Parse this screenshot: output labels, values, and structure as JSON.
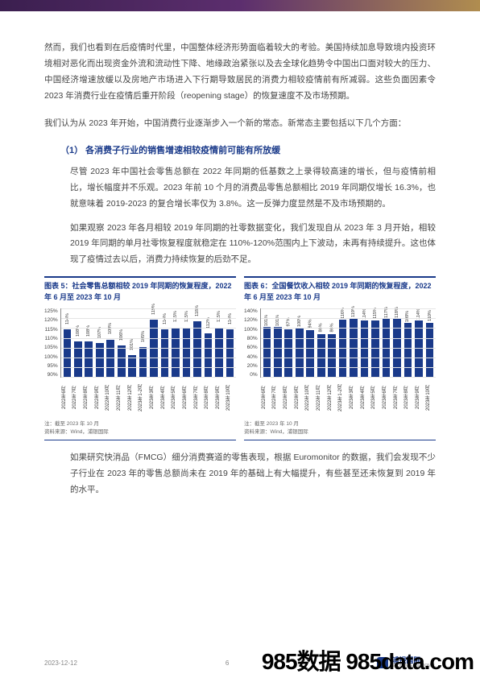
{
  "para1": "然而，我们也看到在后疫情时代里，中国整体经济形势面临着较大的考验。美国持续加息导致境内投资环境相对恶化而出现资金外流和流动性下降、地缘政治紧张以及去全球化趋势令中国出口面对较大的压力、中国经济增速放缓以及房地产市场进入下行期导致居民的消费力相较疫情前有所减弱。这些负面因素令 2023 年消费行业在疫情后重开阶段（reopening stage）的恢复速度不及市场预期。",
  "para2": "我们认为从 2023 年开始，中国消费行业逐渐步入一个新的常态。新常态主要包括以下几个方面：",
  "section_head": "（1） 各消费子行业的销售增速相较疫情前可能有所放缓",
  "para3": "尽管 2023 年中国社会零售总额在 2022 年同期的低基数之上录得较高速的增长，但与疫情前相比，增长幅度并不乐观。2023 年前 10 个月的消费品零售总额相比 2019 年同期仅增长 16.3%，也就意味着 2019-2023 的复合增长率仅为 3.8%。这一反弹力度显然是不及市场预期的。",
  "para4": "如果观察 2023 年各月相较 2019 年同期的社零数据变化，我们发现自从 2023 年 3 月开始，相较 2019 年同期的单月社零恢复程度就稳定在 110%-120%范围内上下波动，未再有持续提升。这也体现了疫情过去以后，消费力持续恢复的后劲不足。",
  "para5": "如果研究快消品（FMCG）细分消费赛道的零售表现，根据 Euromonitor 的数据，我们会发现不少子行业在 2023 年的零售总额尚未在 2019 年的基础上有大幅提升，有些甚至还未恢复到 2019 年的水平。",
  "chart5": {
    "title": "图表 5：社会零售总额相较 2019 年同期的恢复程度，2022 年 6 月至 2023 年 10 月",
    "bar_color": "#1a3a8a",
    "y_min": 90,
    "y_max": 125,
    "y_step": 5,
    "y_ticks": [
      "125%",
      "120%",
      "115%",
      "110%",
      "105%",
      "100%",
      "95%",
      "90%"
    ],
    "categories": [
      "2022年6月",
      "2022年7月",
      "2022年8月",
      "2022年9月",
      "2022年10月",
      "2022年11月",
      "2022年12月",
      "2023年1-2月",
      "2023年3月",
      "2023年4月",
      "2023年5月",
      "2023年6月",
      "2023年7月",
      "2023年8月",
      "2023年9月",
      "2023年10月"
    ],
    "values": [
      114,
      108,
      108,
      107,
      109,
      106,
      101,
      105,
      119,
      114,
      115,
      115,
      118,
      112,
      115,
      114
    ],
    "note1": "注：截至 2023 年 10 月",
    "note2": "资料来源：Wind，浦银国际"
  },
  "chart6": {
    "title": "图表 6：全国餐饮收入相较 2019 年同期的恢复程度，2022 年 6 月至 2023 年 10 月",
    "bar_color": "#1a3a8a",
    "y_min": 0,
    "y_max": 140,
    "y_step": 20,
    "y_ticks": [
      "140%",
      "120%",
      "100%",
      "80%",
      "60%",
      "40%",
      "20%",
      "0%"
    ],
    "categories": [
      "2022年6月",
      "2022年7月",
      "2022年8月",
      "2022年9月",
      "2022年10月",
      "2022年11月",
      "2022年12月",
      "2023年1-2月",
      "2023年3月",
      "2023年4月",
      "2023年5月",
      "2023年6月",
      "2023年7月",
      "2023年8月",
      "2023年9月",
      "2023年10月"
    ],
    "values": [
      101,
      101,
      97,
      100,
      94,
      86,
      86,
      116,
      119,
      114,
      115,
      117,
      118,
      109,
      114,
      110
    ],
    "note1": "注：截至 2023 年 10 月",
    "note2": "资料来源：Wind，浦银国际"
  },
  "footer": {
    "date": "2023-12-12",
    "page": "6",
    "logo_cn": "浦银国际",
    "logo_en": "SPDB INTERNATIONAL"
  },
  "watermark": "985数据 985data.com"
}
